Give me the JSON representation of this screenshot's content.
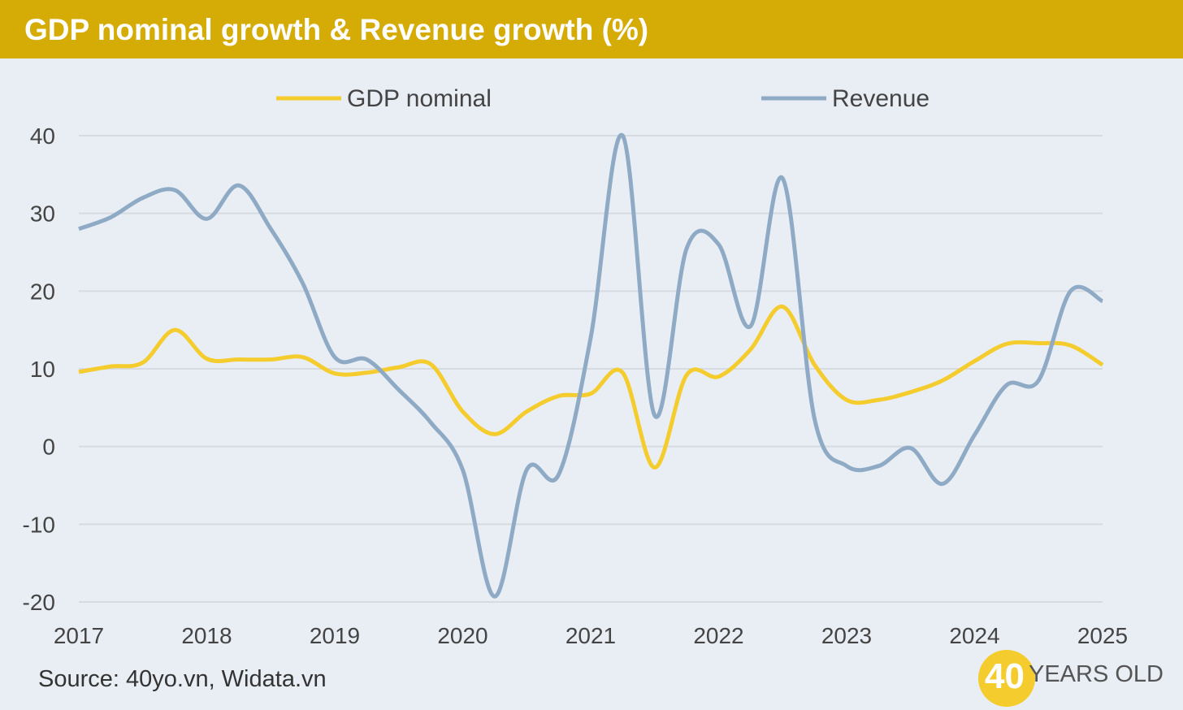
{
  "header": {
    "title": "GDP nominal growth & Revenue growth (%)"
  },
  "footer": {
    "source": "Source: 40yo.vn, Widata.vn",
    "logo_number": "40",
    "logo_text": "YEARS OLD"
  },
  "chart_data": {
    "type": "line",
    "title": "GDP nominal growth & Revenue growth (%)",
    "xlabel": "",
    "ylabel": "",
    "xlim": [
      2017,
      2025
    ],
    "ylim": [
      -20,
      40
    ],
    "x_ticks": [
      "2017",
      "2018",
      "2019",
      "2020",
      "2021",
      "2022",
      "2023",
      "2024",
      "2025"
    ],
    "y_ticks": [
      40,
      30,
      20,
      10,
      0,
      -10,
      -20
    ],
    "grid": true,
    "legend": "top",
    "x_step": 0.25,
    "series": [
      {
        "name": "GDP nominal",
        "color": "#f5cc2e",
        "values": [
          9.6,
          10.3,
          10.8,
          15,
          11.3,
          11.2,
          11.2,
          11.5,
          9.4,
          9.5,
          10.2,
          10.6,
          4.5,
          1.6,
          4.5,
          6.5,
          6.8,
          9.5,
          -2.7,
          9.2,
          9,
          12.5,
          18,
          10.5,
          6,
          6,
          7,
          8.5,
          11,
          13.2,
          13.3,
          13,
          10.5
        ]
      },
      {
        "name": "Revenue",
        "color": "#8eaac4",
        "values": [
          28,
          29.5,
          32,
          33,
          29.3,
          33.6,
          28,
          21,
          11.5,
          11.2,
          7.3,
          3.1,
          -3,
          -19.3,
          -3,
          -3.6,
          14,
          40,
          4,
          25.5,
          26,
          15.5,
          34.5,
          3.5,
          -2.5,
          -2.5,
          -0.2,
          -4.8,
          1.5,
          7.9,
          8.5,
          20,
          18.7
        ]
      }
    ]
  }
}
